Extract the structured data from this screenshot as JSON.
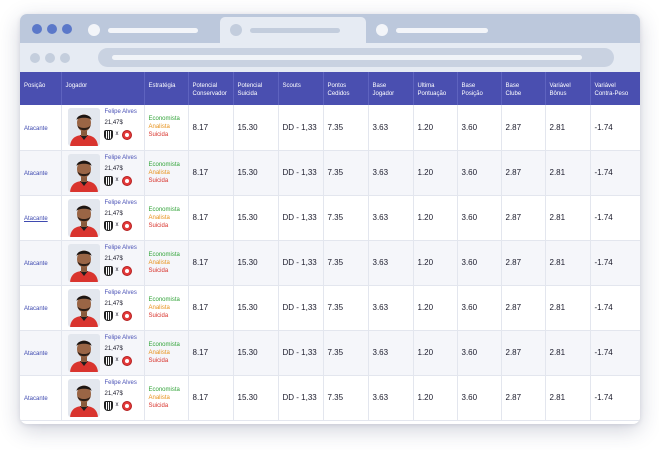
{
  "colors": {
    "header_bg": "#4a4fb0",
    "economista": "#33a43a",
    "analista": "#e7921b",
    "suicida": "#d8322b",
    "link": "#3f4ab0"
  },
  "browser": {
    "icons": [
      "window-dot-icon",
      "tab-placeholder",
      "address-bar-placeholder"
    ]
  },
  "table": {
    "headers": {
      "posicao": "Posição",
      "jogador": "Jogador",
      "estrategia": "Estratégia",
      "potencial_conservador_1": "Potencial",
      "potencial_conservador_2": "Conservador",
      "potencial_suicida_1": "Potencial",
      "potencial_suicida_2": "Suicida",
      "scouts": "Scouts",
      "pontos_cedidos_1": "Pontos",
      "pontos_cedidos_2": "Cedidos",
      "base_jogador_1": "Base",
      "base_jogador_2": "Jogador",
      "ultima_pontuacao_1": "Ultima",
      "ultima_pontuacao_2": "Pontuação",
      "base_posicao_1": "Base",
      "base_posicao_2": "Posição",
      "base_clube_1": "Base",
      "base_clube_2": "Clube",
      "variavel_bonus_1": "Variável",
      "variavel_bonus_2": "Bônus",
      "variavel_contrapeso_1": "Variável",
      "variavel_contrapeso_2": "Contra-Peso"
    },
    "rows": [
      {
        "posicao": "Atacante",
        "nome": "Felipe Alves",
        "preco": "21,47$",
        "vs": "x",
        "eco": "Economista",
        "ana": "Analista",
        "sui": "Suicida",
        "pot_cons": "8.17",
        "pot_sui": "15.30",
        "scouts": "DD - 1,33",
        "pontos_cedidos": "7.35",
        "base_jogador": "3.63",
        "ultima_pontuacao": "1.20",
        "base_posicao": "3.60",
        "base_clube": "2.87",
        "var_bonus": "2.81",
        "var_contrapeso": "-1.74"
      },
      {
        "posicao": "Atacante",
        "nome": "Felipe Alves",
        "preco": "21,47$",
        "vs": "x",
        "eco": "Economista",
        "ana": "Analista",
        "sui": "Suicida",
        "pot_cons": "8.17",
        "pot_sui": "15.30",
        "scouts": "DD - 1,33",
        "pontos_cedidos": "7.35",
        "base_jogador": "3.63",
        "ultima_pontuacao": "1.20",
        "base_posicao": "3.60",
        "base_clube": "2.87",
        "var_bonus": "2.81",
        "var_contrapeso": "-1.74"
      },
      {
        "posicao": "Atacante",
        "nome": "Felipe Alves",
        "preco": "21,47$",
        "vs": "x",
        "eco": "Economista",
        "ana": "Analista",
        "sui": "Suicida",
        "pot_cons": "8.17",
        "pot_sui": "15.30",
        "scouts": "DD - 1,33",
        "pontos_cedidos": "7.35",
        "base_jogador": "3.63",
        "ultima_pontuacao": "1.20",
        "base_posicao": "3.60",
        "base_clube": "2.87",
        "var_bonus": "2.81",
        "var_contrapeso": "-1.74"
      },
      {
        "posicao": "Atacante",
        "nome": "Felipe Alves",
        "preco": "21,47$",
        "vs": "x",
        "eco": "Economista",
        "ana": "Analista",
        "sui": "Suicida",
        "pot_cons": "8.17",
        "pot_sui": "15.30",
        "scouts": "DD - 1,33",
        "pontos_cedidos": "7.35",
        "base_jogador": "3.63",
        "ultima_pontuacao": "1.20",
        "base_posicao": "3.60",
        "base_clube": "2.87",
        "var_bonus": "2.81",
        "var_contrapeso": "-1.74"
      },
      {
        "posicao": "Atacante",
        "nome": "Felipe Alves",
        "preco": "21,47$",
        "vs": "x",
        "eco": "Economista",
        "ana": "Analista",
        "sui": "Suicida",
        "pot_cons": "8.17",
        "pot_sui": "15.30",
        "scouts": "DD - 1,33",
        "pontos_cedidos": "7.35",
        "base_jogador": "3.63",
        "ultima_pontuacao": "1.20",
        "base_posicao": "3.60",
        "base_clube": "2.87",
        "var_bonus": "2.81",
        "var_contrapeso": "-1.74"
      },
      {
        "posicao": "Atacante",
        "nome": "Felipe Alves",
        "preco": "21,47$",
        "vs": "x",
        "eco": "Economista",
        "ana": "Analista",
        "sui": "Suicida",
        "pot_cons": "8.17",
        "pot_sui": "15.30",
        "scouts": "DD - 1,33",
        "pontos_cedidos": "7.35",
        "base_jogador": "3.63",
        "ultima_pontuacao": "1.20",
        "base_posicao": "3.60",
        "base_clube": "2.87",
        "var_bonus": "2.81",
        "var_contrapeso": "-1.74"
      },
      {
        "posicao": "Atacante",
        "nome": "Felipe Alves",
        "preco": "21,47$",
        "vs": "x",
        "eco": "Economista",
        "ana": "Analista",
        "sui": "Suicida",
        "pot_cons": "8.17",
        "pot_sui": "15.30",
        "scouts": "DD - 1,33",
        "pontos_cedidos": "7.35",
        "base_jogador": "3.63",
        "ultima_pontuacao": "1.20",
        "base_posicao": "3.60",
        "base_clube": "2.87",
        "var_bonus": "2.81",
        "var_contrapeso": "-1.74"
      }
    ]
  }
}
